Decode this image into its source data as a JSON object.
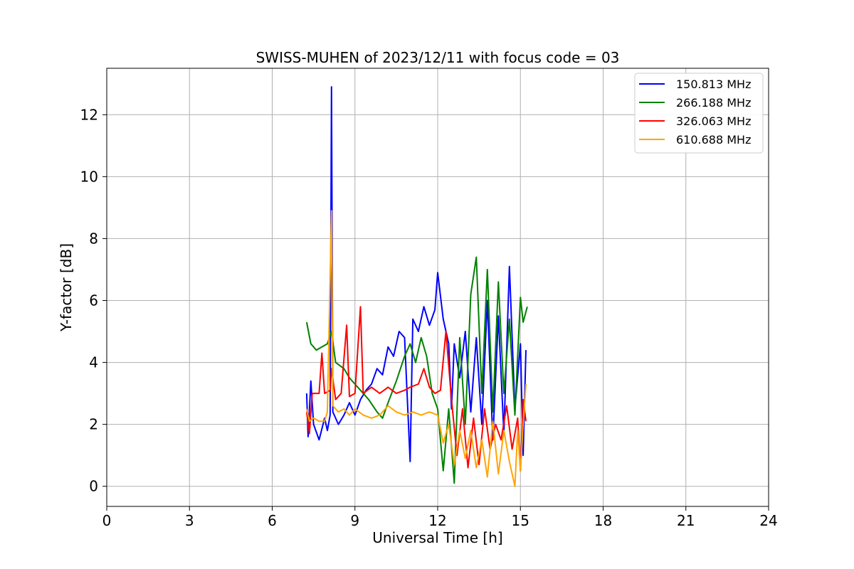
{
  "chart_data": {
    "type": "line",
    "title": "SWISS-MUHEN of 2023/12/11 with focus code = 03",
    "xlabel": "Universal Time [h]",
    "ylabel": "Y-factor [dB]",
    "xlim": [
      0,
      24
    ],
    "ylim": [
      -0.65,
      13.5
    ],
    "x_ticks": [
      0,
      3,
      6,
      9,
      12,
      15,
      18,
      21,
      24
    ],
    "y_ticks": [
      0,
      2,
      4,
      6,
      8,
      10,
      12
    ],
    "grid": true,
    "legend_position": "top-right",
    "series": [
      {
        "name": "150.813 MHz",
        "color": "#0000ff",
        "points": [
          [
            7.25,
            3.0
          ],
          [
            7.3,
            1.6
          ],
          [
            7.4,
            3.4
          ],
          [
            7.5,
            2.0
          ],
          [
            7.7,
            1.5
          ],
          [
            7.9,
            2.2
          ],
          [
            8.0,
            1.8
          ],
          [
            8.1,
            2.3
          ],
          [
            8.15,
            12.9
          ],
          [
            8.2,
            2.4
          ],
          [
            8.4,
            2.0
          ],
          [
            8.6,
            2.3
          ],
          [
            8.8,
            2.7
          ],
          [
            9.0,
            2.3
          ],
          [
            9.2,
            2.8
          ],
          [
            9.4,
            3.1
          ],
          [
            9.6,
            3.3
          ],
          [
            9.8,
            3.8
          ],
          [
            10.0,
            3.6
          ],
          [
            10.2,
            4.5
          ],
          [
            10.4,
            4.2
          ],
          [
            10.6,
            5.0
          ],
          [
            10.8,
            4.8
          ],
          [
            11.0,
            0.8
          ],
          [
            11.1,
            5.4
          ],
          [
            11.3,
            5.0
          ],
          [
            11.5,
            5.8
          ],
          [
            11.7,
            5.2
          ],
          [
            11.9,
            5.7
          ],
          [
            12.0,
            6.9
          ],
          [
            12.2,
            5.4
          ],
          [
            12.4,
            4.6
          ],
          [
            12.5,
            2.5
          ],
          [
            12.6,
            4.6
          ],
          [
            12.8,
            3.5
          ],
          [
            13.0,
            5.0
          ],
          [
            13.2,
            2.4
          ],
          [
            13.4,
            4.8
          ],
          [
            13.6,
            2.0
          ],
          [
            13.8,
            6.0
          ],
          [
            14.0,
            1.5
          ],
          [
            14.2,
            5.5
          ],
          [
            14.4,
            1.7
          ],
          [
            14.6,
            7.1
          ],
          [
            14.8,
            2.5
          ],
          [
            15.0,
            4.6
          ],
          [
            15.1,
            1.0
          ],
          [
            15.2,
            4.4
          ]
        ]
      },
      {
        "name": "266.188 MHz",
        "color": "#008000",
        "points": [
          [
            7.25,
            5.3
          ],
          [
            7.4,
            4.6
          ],
          [
            7.6,
            4.4
          ],
          [
            7.8,
            4.5
          ],
          [
            8.0,
            4.6
          ],
          [
            8.15,
            5.0
          ],
          [
            8.3,
            4.0
          ],
          [
            8.6,
            3.8
          ],
          [
            8.8,
            3.5
          ],
          [
            9.0,
            3.3
          ],
          [
            9.2,
            3.1
          ],
          [
            9.5,
            2.8
          ],
          [
            9.8,
            2.4
          ],
          [
            10.0,
            2.2
          ],
          [
            10.2,
            2.7
          ],
          [
            10.5,
            3.4
          ],
          [
            10.8,
            4.2
          ],
          [
            11.0,
            4.6
          ],
          [
            11.2,
            4.0
          ],
          [
            11.4,
            4.8
          ],
          [
            11.6,
            4.2
          ],
          [
            11.8,
            3.0
          ],
          [
            12.0,
            2.5
          ],
          [
            12.2,
            0.5
          ],
          [
            12.4,
            2.5
          ],
          [
            12.6,
            0.1
          ],
          [
            12.8,
            4.8
          ],
          [
            13.0,
            2.0
          ],
          [
            13.2,
            6.2
          ],
          [
            13.4,
            7.4
          ],
          [
            13.6,
            3.0
          ],
          [
            13.8,
            7.0
          ],
          [
            14.0,
            2.4
          ],
          [
            14.2,
            6.6
          ],
          [
            14.4,
            3.0
          ],
          [
            14.6,
            5.4
          ],
          [
            14.8,
            2.3
          ],
          [
            15.0,
            6.1
          ],
          [
            15.1,
            5.3
          ],
          [
            15.25,
            5.8
          ]
        ]
      },
      {
        "name": "326.063 MHz",
        "color": "#ff0000",
        "points": [
          [
            7.25,
            2.4
          ],
          [
            7.35,
            1.7
          ],
          [
            7.45,
            3.0
          ],
          [
            7.7,
            3.0
          ],
          [
            7.8,
            4.3
          ],
          [
            7.9,
            3.0
          ],
          [
            8.1,
            3.1
          ],
          [
            8.15,
            3.8
          ],
          [
            8.3,
            2.8
          ],
          [
            8.5,
            3.0
          ],
          [
            8.7,
            5.2
          ],
          [
            8.8,
            2.9
          ],
          [
            9.0,
            3.0
          ],
          [
            9.2,
            5.8
          ],
          [
            9.3,
            3.0
          ],
          [
            9.6,
            3.2
          ],
          [
            9.9,
            3.0
          ],
          [
            10.2,
            3.2
          ],
          [
            10.5,
            3.0
          ],
          [
            10.8,
            3.1
          ],
          [
            11.0,
            3.2
          ],
          [
            11.3,
            3.3
          ],
          [
            11.5,
            3.8
          ],
          [
            11.7,
            3.2
          ],
          [
            11.9,
            3.0
          ],
          [
            12.1,
            3.1
          ],
          [
            12.3,
            5.0
          ],
          [
            12.5,
            2.8
          ],
          [
            12.7,
            1.0
          ],
          [
            12.9,
            2.5
          ],
          [
            13.1,
            0.6
          ],
          [
            13.3,
            2.2
          ],
          [
            13.5,
            0.7
          ],
          [
            13.7,
            2.5
          ],
          [
            13.9,
            1.2
          ],
          [
            14.1,
            2.0
          ],
          [
            14.3,
            1.5
          ],
          [
            14.5,
            2.6
          ],
          [
            14.7,
            1.2
          ],
          [
            14.9,
            2.2
          ],
          [
            15.0,
            0.5
          ],
          [
            15.1,
            2.8
          ],
          [
            15.2,
            2.1
          ]
        ]
      },
      {
        "name": "610.688 MHz",
        "color": "#ffa500",
        "points": [
          [
            7.25,
            2.5
          ],
          [
            7.35,
            2.1
          ],
          [
            7.5,
            2.2
          ],
          [
            7.7,
            2.1
          ],
          [
            7.9,
            2.1
          ],
          [
            8.0,
            2.4
          ],
          [
            8.15,
            8.9
          ],
          [
            8.2,
            2.6
          ],
          [
            8.4,
            2.4
          ],
          [
            8.6,
            2.5
          ],
          [
            8.8,
            2.3
          ],
          [
            9.0,
            2.5
          ],
          [
            9.3,
            2.3
          ],
          [
            9.6,
            2.2
          ],
          [
            9.9,
            2.3
          ],
          [
            10.2,
            2.6
          ],
          [
            10.5,
            2.4
          ],
          [
            10.8,
            2.3
          ],
          [
            11.1,
            2.4
          ],
          [
            11.4,
            2.3
          ],
          [
            11.7,
            2.4
          ],
          [
            12.0,
            2.3
          ],
          [
            12.2,
            1.4
          ],
          [
            12.4,
            2.0
          ],
          [
            12.6,
            0.7
          ],
          [
            12.8,
            1.8
          ],
          [
            13.0,
            0.9
          ],
          [
            13.2,
            1.8
          ],
          [
            13.4,
            0.6
          ],
          [
            13.6,
            1.5
          ],
          [
            13.8,
            0.3
          ],
          [
            14.0,
            2.1
          ],
          [
            14.2,
            0.4
          ],
          [
            14.4,
            1.8
          ],
          [
            14.6,
            0.8
          ],
          [
            14.8,
            0.0
          ],
          [
            14.9,
            1.8
          ],
          [
            15.0,
            0.5
          ],
          [
            15.1,
            2.0
          ],
          [
            15.2,
            3.3
          ]
        ]
      }
    ]
  }
}
